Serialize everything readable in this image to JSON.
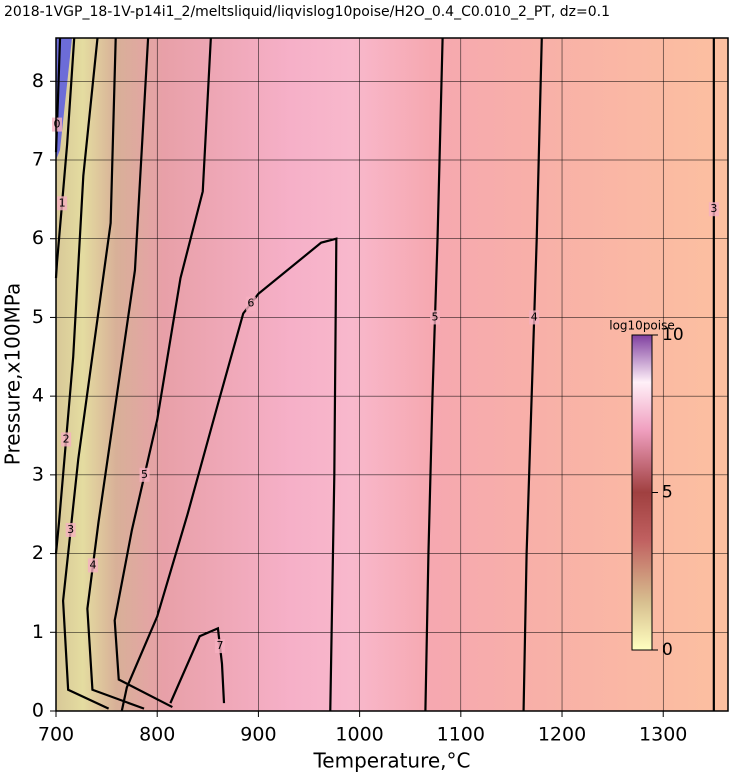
{
  "chart_data": {
    "type": "contour",
    "title": "2018-1VGP_18-1V-p14i1_2/meltsliquid/liqvislog10poise/H2O_0.4_C0.010_2_PT, dz=0.1",
    "x_label": "Temperature,°C",
    "y_label": "Pressure,x100MPa",
    "xlim": [
      700,
      1364
    ],
    "ylim": [
      0,
      8.55
    ],
    "xticks": [
      700,
      800,
      900,
      1000,
      1100,
      1200,
      1300
    ],
    "yticks": [
      0,
      1,
      2,
      3,
      4,
      5,
      6,
      7,
      8
    ],
    "grid": true,
    "contours": [
      {
        "level": 0,
        "x": [
          704,
          702,
          700
        ],
        "y": [
          8.55,
          7.8,
          7.1
        ]
      },
      {
        "level": 1,
        "x": [
          718,
          711,
          701,
          700
        ],
        "y": [
          8.55,
          7.2,
          5.7,
          5.5
        ]
      },
      {
        "level": 2,
        "x": [
          741,
          727,
          717,
          703,
          700
        ],
        "y": [
          8.55,
          6.8,
          4.5,
          2.4,
          2.0
        ]
      },
      {
        "level": 3,
        "x": [
          759,
          754,
          722,
          707,
          712,
          752
        ],
        "y": [
          8.55,
          6.2,
          3.2,
          1.4,
          0.27,
          0.03
        ]
      },
      {
        "level": 4,
        "x": [
          791,
          778,
          742,
          731,
          736,
          787
        ],
        "y": [
          8.55,
          5.6,
          2.4,
          1.3,
          0.27,
          0.03
        ]
      },
      {
        "level": 5,
        "x": [
          853,
          845,
          823,
          800,
          775,
          758,
          762,
          815
        ],
        "y": [
          8.55,
          6.6,
          5.5,
          3.7,
          2.3,
          1.15,
          0.4,
          0.05
        ]
      },
      {
        "level": 6,
        "x": [
          765,
          770,
          800,
          830,
          860,
          885,
          900,
          962,
          977,
          975,
          971
        ],
        "y": [
          0,
          0.3,
          1.2,
          2.5,
          3.9,
          5.05,
          5.3,
          5.95,
          6.0,
          3.0,
          0
        ]
      },
      {
        "level": 7,
        "x": [
          813,
          842,
          860,
          864,
          866
        ],
        "y": [
          0.1,
          0.95,
          1.05,
          0.6,
          0.1
        ]
      },
      {
        "level": 5,
        "x": [
          1065,
          1068,
          1072,
          1077,
          1082
        ],
        "y": [
          0,
          2,
          4,
          6,
          8.55
        ]
      },
      {
        "level": 4,
        "x": [
          1162,
          1165,
          1170,
          1175,
          1180
        ],
        "y": [
          0,
          2,
          4,
          6,
          8.55
        ]
      },
      {
        "level": 3,
        "x": [
          1350,
          1350,
          1350
        ],
        "y": [
          0,
          4.2,
          8.55
        ]
      }
    ],
    "colorbar": {
      "label": "log10poise",
      "lim": [
        0,
        10
      ],
      "ticks": [
        0,
        5,
        10
      ]
    }
  }
}
